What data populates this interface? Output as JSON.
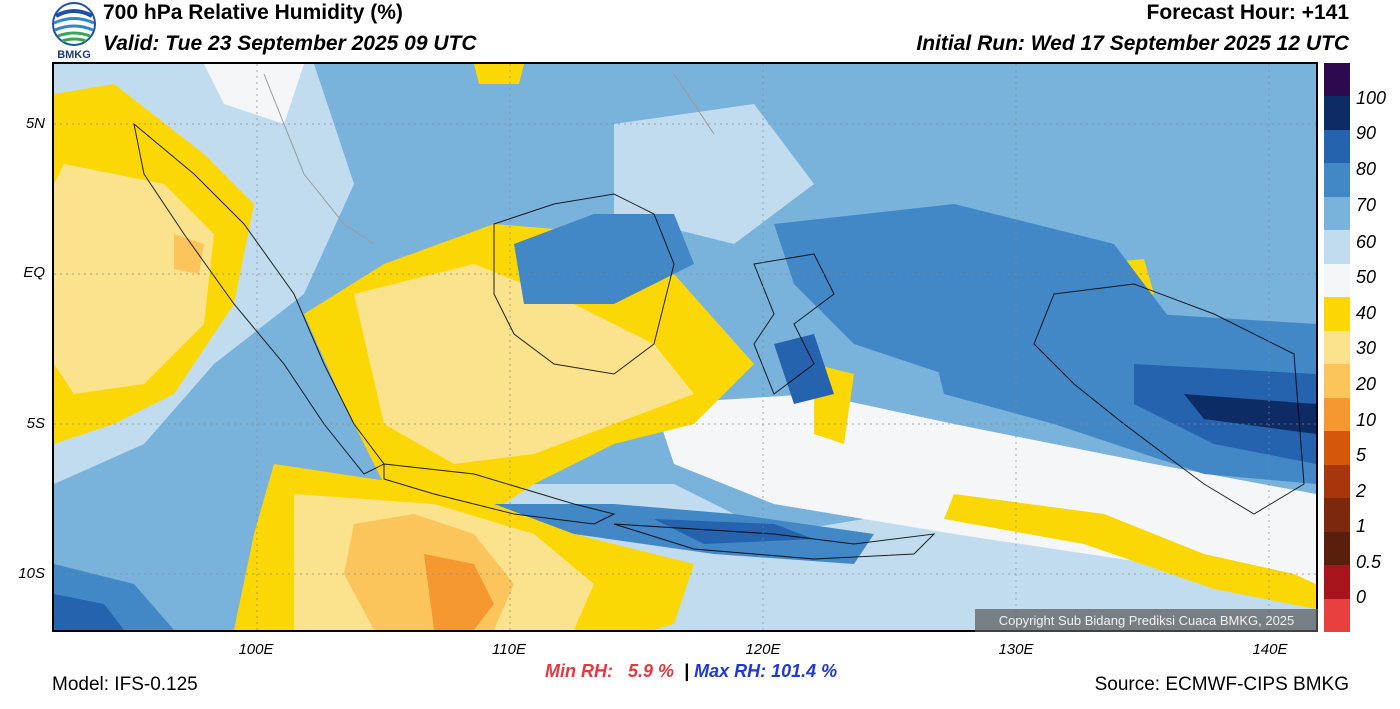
{
  "header": {
    "title": "700 hPa Relative Humidity (%)",
    "valid": "Valid: Tue 23 September 2025 09 UTC",
    "forecast_hour": "Forecast Hour: +141",
    "initial_run": "Initial Run: Wed 17 September 2025 12 UTC",
    "logo_text": "BMKG"
  },
  "map": {
    "lat_labels": [
      "5N",
      "EQ",
      "5S",
      "10S"
    ],
    "lon_labels": [
      "100E",
      "110E",
      "120E",
      "130E",
      "140E"
    ],
    "copyright": "Copyright Sub Bidang Prediksi Cuaca BMKG, 2025"
  },
  "colorbar": {
    "labels": [
      "100",
      "90",
      "80",
      "70",
      "60",
      "50",
      "40",
      "30",
      "20",
      "10",
      "5",
      "2",
      "1",
      "0.5",
      "0"
    ],
    "colors": [
      "#2d0a4e",
      "#0d2c66",
      "#2563ae",
      "#4287c6",
      "#79b3dc",
      "#c2dcef",
      "#f4f6f8",
      "#fbd705",
      "#fbe38d",
      "#fbc55c",
      "#f69830",
      "#d5570c",
      "#a8360c",
      "#7c280c",
      "#5a1e0c",
      "#a8141c",
      "#e8403e"
    ]
  },
  "footer": {
    "min_label": "Min RH:",
    "min_value": "5.9 %",
    "separator": "|",
    "max_label": "Max RH:",
    "max_value": "101.4 %",
    "model": "Model: IFS-0.125",
    "source": "Source: ECMWF-CIPS BMKG"
  }
}
